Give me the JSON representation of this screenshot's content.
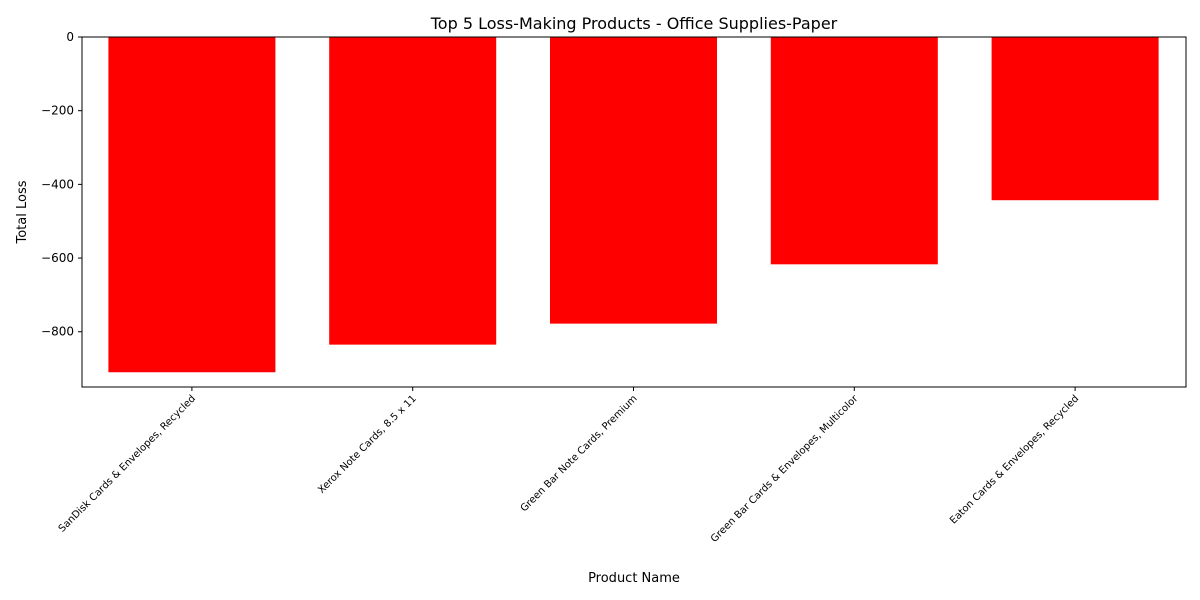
{
  "chart_data": {
    "type": "bar",
    "title": "Top 5 Loss-Making Products - Office Supplies-Paper",
    "xlabel": "Product Name",
    "ylabel": "Total Loss",
    "categories": [
      "SanDisk Cards & Envelopes, Recycled",
      "Xerox Note Cards, 8.5 x 11",
      "Green Bar Note Cards, Premium",
      "Green Bar Cards & Envelopes, Multicolor",
      "Eaton Cards & Envelopes, Recycled"
    ],
    "values": [
      -910,
      -835,
      -778,
      -617,
      -443
    ],
    "ylim": [
      -950,
      0
    ],
    "yticks": [
      0,
      -200,
      -400,
      -600,
      -800
    ],
    "ytick_labels": [
      "0",
      "−200",
      "−400",
      "−600",
      "−800"
    ],
    "bar_color": "#ff0000",
    "grid": false,
    "legend": "none"
  }
}
